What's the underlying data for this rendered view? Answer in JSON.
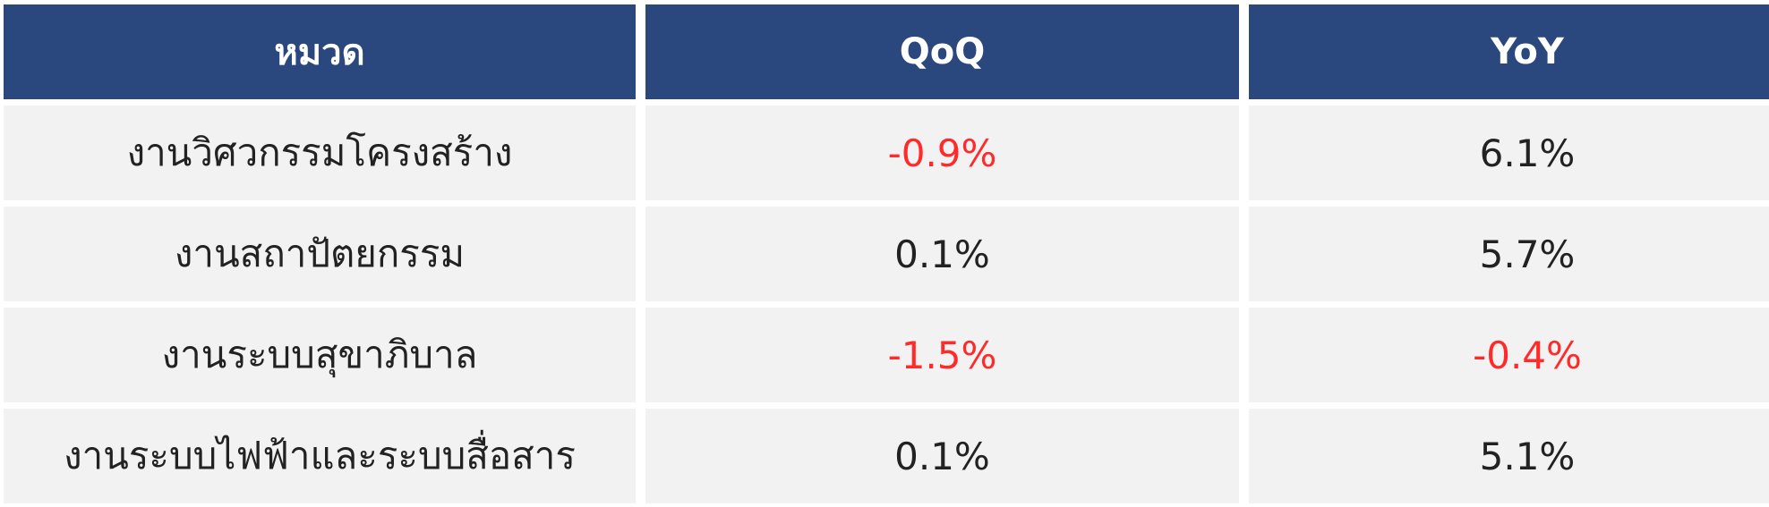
{
  "colors": {
    "header_bg": "#2a477e",
    "header_text": "#ffffff",
    "row_bg": "#f2f2f2",
    "text": "#222222",
    "negative": "#ff2a2a"
  },
  "chart_data": {
    "type": "table",
    "columns": [
      "หมวด",
      "QoQ",
      "YoY"
    ],
    "rows": [
      {
        "category": "งานวิศวกรรมโครงสร้าง",
        "qoq": "-0.9%",
        "yoy": "6.1%"
      },
      {
        "category": "งานสถาปัตยกรรม",
        "qoq": "0.1%",
        "yoy": "5.7%"
      },
      {
        "category": "งานระบบสุขาภิบาล",
        "qoq": "-1.5%",
        "yoy": "-0.4%"
      },
      {
        "category": "งานระบบไฟฟ้าและระบบสื่อสาร",
        "qoq": "0.1%",
        "yoy": "5.1%"
      }
    ]
  }
}
